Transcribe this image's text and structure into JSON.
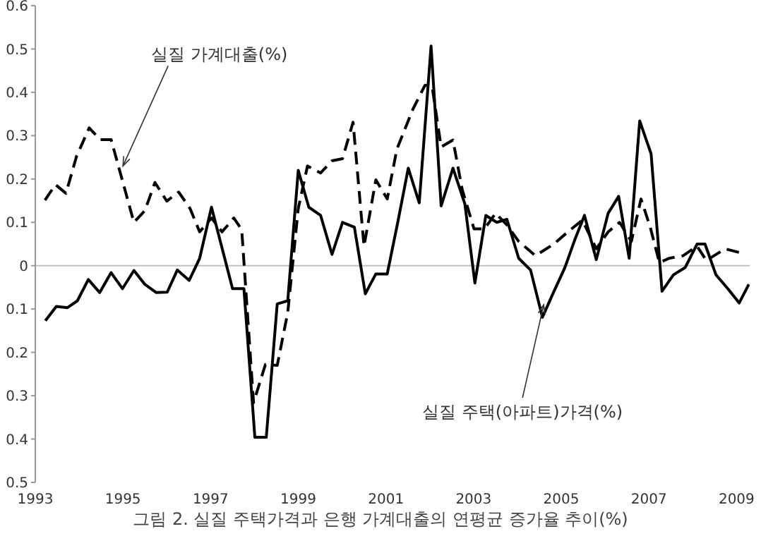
{
  "chart_data": {
    "type": "line",
    "title": "그림 2. 실질 주택가격과 은행 가계대출의 연평균 증가율 추이(%)",
    "xlim": [
      1993,
      2009.3
    ],
    "xticks": [
      1993,
      1995,
      1997,
      1999,
      2001,
      2003,
      2005,
      2007,
      2009
    ],
    "ylim": [
      -0.5,
      0.6
    ],
    "yticks": [
      {
        "value": -0.5,
        "label": "0.5"
      },
      {
        "value": -0.4,
        "label": "0.4"
      },
      {
        "value": -0.3,
        "label": "0.3"
      },
      {
        "value": -0.2,
        "label": "0.2"
      },
      {
        "value": -0.1,
        "label": "0.1"
      },
      0,
      0.1,
      0.2,
      0.3,
      0.4,
      0.5,
      0.6
    ],
    "grid": false,
    "legend": false,
    "marker": "none",
    "ref_lines": [
      {
        "axis": "y",
        "value": 0,
        "color": "#c0c0c0"
      }
    ],
    "annotations": [
      {
        "text": "실질 가계대출(%)",
        "x": 1995.0,
        "y": 0.23
      },
      {
        "text": "실질 주택(아파트)가격(%)",
        "x": 2004.6,
        "y": -0.09
      }
    ],
    "series": [
      {
        "color": "#000000",
        "line_style": "solid",
        "x": [
          1993.23,
          1993.48,
          1993.73,
          1993.96,
          1994.21,
          1994.47,
          1994.73,
          1994.99,
          1995.25,
          1995.5,
          1995.76,
          1996.01,
          1996.24,
          1996.51,
          1996.75,
          1997.02,
          1997.5,
          1997.76,
          1998.01,
          1998.27,
          1998.52,
          1998.76,
          1999.0,
          1999.24,
          1999.51,
          1999.77,
          2000.01,
          2000.28,
          2000.53,
          2000.77,
          2001.03,
          2001.27,
          2001.51,
          2001.76,
          2002.03,
          2002.26,
          2002.53,
          2002.8,
          2003.03,
          2003.28,
          2003.53,
          2003.76,
          2004.03,
          2004.3,
          2004.57,
          2004.83,
          2005.08,
          2005.31,
          2005.53,
          2005.8,
          2006.07,
          2006.31,
          2006.55,
          2006.79,
          2007.05,
          2007.3,
          2007.56,
          2007.83,
          2008.1,
          2008.28,
          2008.53,
          2008.8,
          2009.06,
          2009.28
        ],
        "values": [
          -0.127,
          -0.094,
          -0.097,
          -0.081,
          -0.032,
          -0.062,
          -0.016,
          -0.053,
          -0.011,
          -0.043,
          -0.062,
          -0.061,
          -0.01,
          -0.034,
          0.017,
          0.135,
          -0.053,
          -0.053,
          -0.396,
          -0.396,
          -0.088,
          -0.081,
          0.22,
          0.135,
          0.116,
          0.026,
          0.1,
          0.089,
          -0.065,
          -0.019,
          -0.019,
          0.1,
          0.225,
          0.145,
          0.507,
          0.138,
          0.225,
          0.143,
          -0.04,
          0.116,
          0.1,
          0.107,
          0.017,
          -0.01,
          -0.119,
          -0.06,
          -0.005,
          0.06,
          0.116,
          0.014,
          0.121,
          0.16,
          0.017,
          0.334,
          0.258,
          -0.059,
          -0.021,
          -0.004,
          0.05,
          0.05,
          -0.021,
          -0.053,
          -0.086,
          -0.043
        ]
      },
      {
        "color": "#000000",
        "line_style": "dashed",
        "x": [
          1993.22,
          1993.46,
          1993.7,
          1993.94,
          1994.23,
          1994.48,
          1994.73,
          1995.25,
          1995.5,
          1995.73,
          1996.0,
          1996.27,
          1996.53,
          1996.75,
          1997.02,
          1997.26,
          1997.53,
          1997.71,
          1997.98,
          1998.25,
          1998.52,
          1998.76,
          1999.0,
          1999.21,
          1999.51,
          1999.77,
          2000.01,
          2000.25,
          2000.5,
          2000.77,
          2001.03,
          2001.25,
          2001.62,
          2001.89,
          2002.05,
          2002.26,
          2002.53,
          2002.74,
          2003.01,
          2003.25,
          2003.5,
          2003.76,
          2004.03,
          2004.41,
          2004.83,
          2005.15,
          2005.48,
          2005.8,
          2006.07,
          2006.33,
          2006.6,
          2006.82,
          2007.03,
          2007.24,
          2007.46,
          2007.78,
          2008.1,
          2008.31,
          2008.74,
          2009.16
        ],
        "values": [
          0.151,
          0.187,
          0.167,
          0.252,
          0.318,
          0.291,
          0.291,
          0.1,
          0.127,
          0.192,
          0.149,
          0.17,
          0.132,
          0.078,
          0.11,
          0.078,
          0.11,
          0.083,
          -0.316,
          -0.228,
          -0.23,
          -0.108,
          0.132,
          0.23,
          0.214,
          0.242,
          0.247,
          0.331,
          0.045,
          0.198,
          0.154,
          0.269,
          0.362,
          0.416,
          0.416,
          0.274,
          0.29,
          0.176,
          0.085,
          0.085,
          0.121,
          0.094,
          0.056,
          0.023,
          0.05,
          0.078,
          0.105,
          0.039,
          0.078,
          0.1,
          0.056,
          0.154,
          0.089,
          0.007,
          0.017,
          0.023,
          0.045,
          0.012,
          0.039,
          0.028
        ]
      }
    ]
  }
}
